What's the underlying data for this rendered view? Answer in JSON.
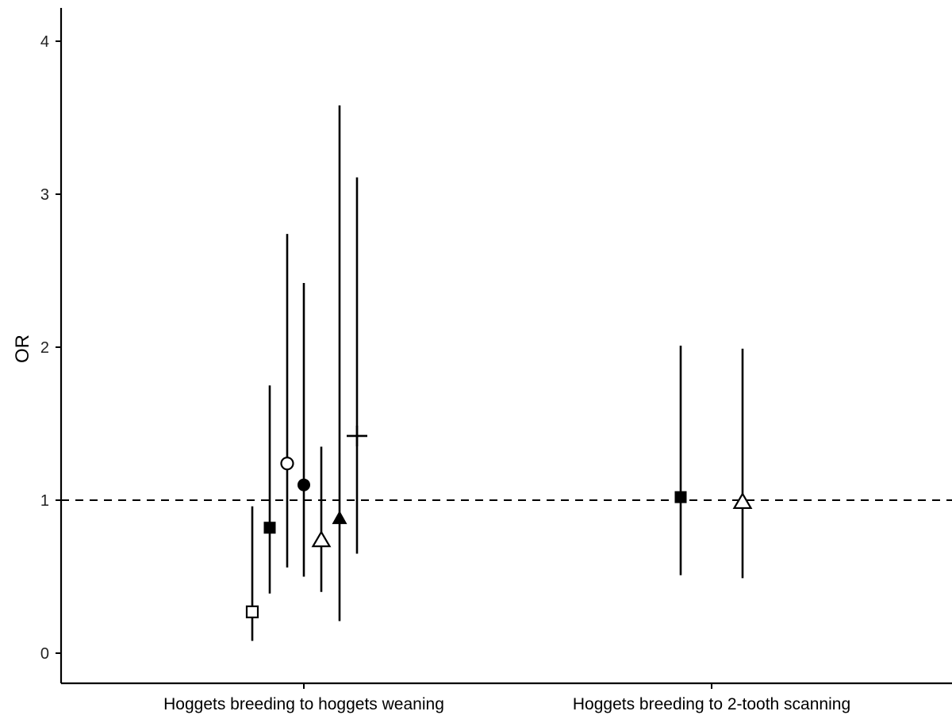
{
  "chart_data": {
    "type": "scatter",
    "title": "",
    "xlabel": "",
    "ylabel": "OR",
    "ylim": [
      -0.2,
      4.2
    ],
    "yticks": [
      0,
      1,
      2,
      3,
      4
    ],
    "categories": [
      "Hoggets breeding to hoggets weaning",
      "Hoggets breeding to 2-tooth scanning"
    ],
    "reference_line": 1,
    "grid": false,
    "legend": "none",
    "points": [
      {
        "category": "Hoggets breeding to hoggets weaning",
        "marker": "open-square",
        "or": 0.27,
        "lower": 0.08,
        "upper": 0.96
      },
      {
        "category": "Hoggets breeding to hoggets weaning",
        "marker": "filled-square",
        "or": 0.82,
        "lower": 0.39,
        "upper": 1.75
      },
      {
        "category": "Hoggets breeding to hoggets weaning",
        "marker": "open-circle",
        "or": 1.24,
        "lower": 0.56,
        "upper": 2.74
      },
      {
        "category": "Hoggets breeding to hoggets weaning",
        "marker": "filled-circle",
        "or": 1.1,
        "lower": 0.5,
        "upper": 2.42
      },
      {
        "category": "Hoggets breeding to hoggets weaning",
        "marker": "open-triangle",
        "or": 0.74,
        "lower": 0.4,
        "upper": 1.35
      },
      {
        "category": "Hoggets breeding to hoggets weaning",
        "marker": "filled-triangle",
        "or": 0.88,
        "lower": 0.21,
        "upper": 3.58
      },
      {
        "category": "Hoggets breeding to hoggets weaning",
        "marker": "plus",
        "or": 1.42,
        "lower": 0.65,
        "upper": 3.11
      },
      {
        "category": "Hoggets breeding to 2-tooth scanning",
        "marker": "filled-square",
        "or": 1.02,
        "lower": 0.51,
        "upper": 2.01
      },
      {
        "category": "Hoggets breeding to 2-tooth scanning",
        "marker": "open-triangle",
        "or": 0.99,
        "lower": 0.49,
        "upper": 1.99
      }
    ]
  }
}
